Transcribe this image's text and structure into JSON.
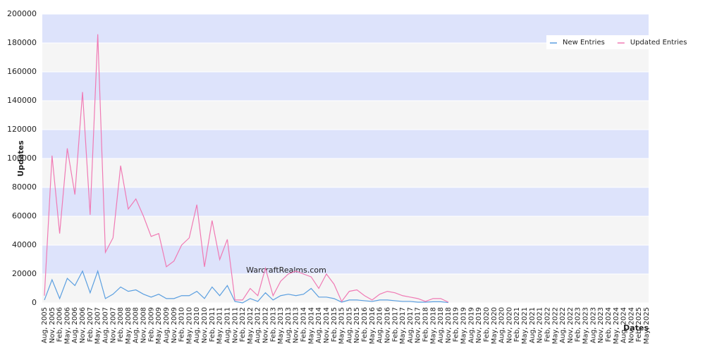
{
  "chart_data": {
    "type": "line",
    "y_label": "Updates",
    "x_label": "Dates",
    "watermark": "WarcraftRealms.com",
    "categories": [
      "Aug, 2005",
      "Nov, 2005",
      "Feb, 2006",
      "May, 2006",
      "Aug, 2006",
      "Nov, 2006",
      "Feb, 2007",
      "May, 2007",
      "Aug, 2007",
      "Nov, 2007",
      "Feb, 2008",
      "May, 2008",
      "Aug, 2008",
      "Nov, 2008",
      "Feb, 2009",
      "May, 2009",
      "Aug, 2009",
      "Nov, 2009",
      "Feb, 2010",
      "May, 2010",
      "Aug, 2010",
      "Nov, 2010",
      "Feb, 2011",
      "May, 2011",
      "Aug, 2011",
      "Nov, 2011",
      "Feb, 2012",
      "May, 2012",
      "Aug, 2012",
      "Nov, 2012",
      "Feb, 2013",
      "May, 2013",
      "Aug, 2013",
      "Nov, 2013",
      "Feb, 2014",
      "May, 2014",
      "Aug, 2014",
      "Nov, 2014",
      "Feb, 2015",
      "May, 2015",
      "Aug, 2015",
      "Nov, 2015",
      "Feb, 2016",
      "May, 2016",
      "Aug, 2016",
      "Nov, 2016",
      "Feb, 2017",
      "May, 2017",
      "Aug, 2017",
      "Nov, 2017",
      "Feb, 2018",
      "May, 2018",
      "Aug, 2018",
      "Nov, 2018",
      "Feb, 2019",
      "May, 2019",
      "Aug, 2019",
      "Nov, 2019",
      "Feb, 2020",
      "May, 2020",
      "Aug, 2020",
      "Nov, 2020",
      "Feb, 2021",
      "May, 2021",
      "Aug, 2021",
      "Nov, 2021",
      "Feb, 2022",
      "May, 2022",
      "Aug, 2022",
      "Nov, 2022",
      "Feb, 2023",
      "May, 2023",
      "Aug, 2023",
      "Nov, 2023",
      "Feb, 2024",
      "May, 2024",
      "Aug, 2024",
      "Nov, 2024",
      "Feb, 2025",
      "May, 2025"
    ],
    "series": [
      {
        "name": "New Entries",
        "color": "#5b9fe0",
        "values": [
          2000,
          16000,
          3000,
          17000,
          12000,
          22000,
          7000,
          22000,
          3000,
          6000,
          11000,
          8000,
          9000,
          6000,
          4000,
          6000,
          3000,
          3000,
          5000,
          5000,
          8000,
          3000,
          11000,
          5000,
          12000,
          1000,
          0,
          3000,
          1000,
          7000,
          2000,
          5000,
          6000,
          5000,
          6000,
          10000,
          4000,
          4000,
          3000,
          500,
          2000,
          2000,
          1500,
          1000,
          2000,
          2000,
          1500,
          1000,
          1000,
          500,
          500,
          800,
          800,
          200,
          null,
          null,
          null,
          null,
          null,
          null,
          null,
          null,
          null,
          null,
          null,
          null,
          null,
          null,
          null,
          null,
          null,
          null,
          null,
          null,
          null,
          null,
          null,
          null,
          null,
          null
        ]
      },
      {
        "name": "Updated Entries",
        "color": "#f07ab4",
        "values": [
          5000,
          102000,
          48000,
          107000,
          75000,
          146000,
          61000,
          186000,
          35000,
          45000,
          95000,
          65000,
          72000,
          60000,
          46000,
          48000,
          25000,
          29000,
          40000,
          45000,
          68000,
          25000,
          57000,
          30000,
          44000,
          2000,
          2000,
          10000,
          5000,
          24000,
          5000,
          15000,
          20000,
          22000,
          20000,
          18000,
          10000,
          20000,
          13000,
          1000,
          8000,
          9000,
          5000,
          2000,
          6000,
          8000,
          7000,
          5000,
          4000,
          3000,
          1000,
          3000,
          3000,
          500,
          null,
          null,
          null,
          null,
          null,
          null,
          null,
          null,
          null,
          null,
          null,
          null,
          null,
          null,
          null,
          null,
          null,
          null,
          null,
          null,
          null,
          null,
          null,
          null,
          null,
          null
        ]
      }
    ],
    "ylim": [
      0,
      200000
    ],
    "yticks": [
      0,
      20000,
      40000,
      60000,
      80000,
      100000,
      120000,
      140000,
      160000,
      180000,
      200000
    ],
    "band_colors": [
      "#f5f5f5",
      "#dde3fb"
    ],
    "legend": "top-right"
  }
}
